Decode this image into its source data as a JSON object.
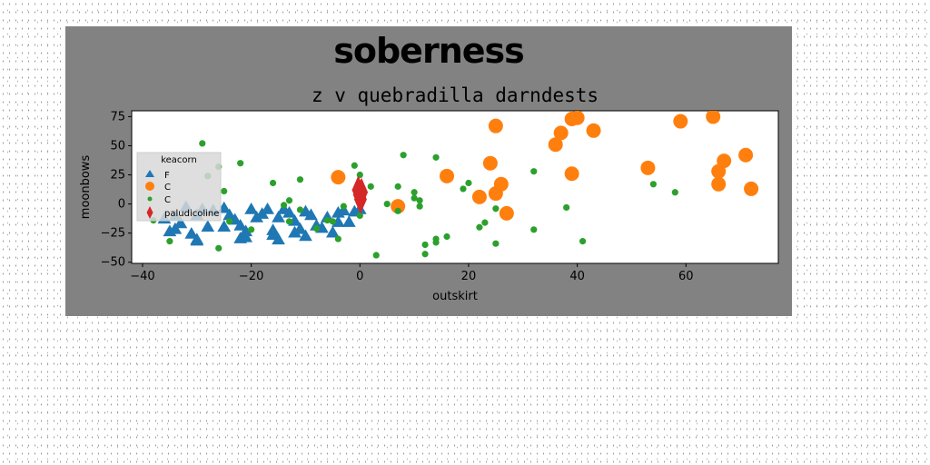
{
  "chart_data": {
    "type": "scatter",
    "suptitle": "soberness",
    "title": "z v quebradilla darndests",
    "xlabel": "outskirt",
    "ylabel": "moonbows",
    "xlim": [
      -42,
      77
    ],
    "ylim": [
      -51,
      80
    ],
    "xticks": [
      -40,
      -20,
      0,
      20,
      40,
      60
    ],
    "yticks": [
      -50,
      -25,
      0,
      25,
      50,
      75
    ],
    "xtick_labels": [
      "−40",
      "−20",
      "0",
      "20",
      "40",
      "60"
    ],
    "ytick_labels": [
      "−50",
      "−25",
      "0",
      "25",
      "50",
      "75"
    ],
    "grid": false,
    "legend": {
      "title": "keacorn",
      "placement": "upper-left",
      "entries": [
        "F",
        "C",
        "C",
        "paludicoline"
      ]
    },
    "series": [
      {
        "name": "F",
        "marker": "triangle",
        "color": "#1f77b4",
        "points": [
          [
            -36,
            -13
          ],
          [
            -35,
            -24
          ],
          [
            -34,
            -22
          ],
          [
            -33,
            -17
          ],
          [
            -32,
            -3
          ],
          [
            -31,
            -26
          ],
          [
            -30,
            -31
          ],
          [
            -30,
            -10
          ],
          [
            -29,
            -5
          ],
          [
            -28,
            -20
          ],
          [
            -27,
            -6
          ],
          [
            -25,
            -4
          ],
          [
            -25,
            -20
          ],
          [
            -24,
            -10
          ],
          [
            -23,
            -14
          ],
          [
            -22,
            -19
          ],
          [
            -22,
            -30
          ],
          [
            -21,
            -29
          ],
          [
            -21,
            -24
          ],
          [
            -20,
            -5
          ],
          [
            -19,
            -12
          ],
          [
            -18,
            -9
          ],
          [
            -17,
            -5
          ],
          [
            -16,
            -27
          ],
          [
            -16,
            -23
          ],
          [
            -15,
            -31
          ],
          [
            -15,
            -12
          ],
          [
            -14,
            -5
          ],
          [
            -13,
            -8
          ],
          [
            -12,
            -15
          ],
          [
            -12,
            -25
          ],
          [
            -11,
            -22
          ],
          [
            -10,
            -7
          ],
          [
            -10,
            -28
          ],
          [
            -9,
            -10
          ],
          [
            -8,
            -19
          ],
          [
            -7,
            -21
          ],
          [
            -6,
            -12
          ],
          [
            -5,
            -25
          ],
          [
            -4,
            -16
          ],
          [
            -4,
            -8
          ],
          [
            -3,
            -6
          ],
          [
            -2,
            -16
          ],
          [
            -1,
            -7
          ],
          [
            0,
            -5
          ],
          [
            -30,
            -32
          ],
          [
            -34,
            -11
          ]
        ]
      },
      {
        "name": "C",
        "marker": "circle",
        "color": "#ff7f0e",
        "points": [
          [
            -4,
            23
          ],
          [
            7,
            -2
          ],
          [
            16,
            24
          ],
          [
            22,
            6
          ],
          [
            24,
            35
          ],
          [
            25,
            67
          ],
          [
            25,
            9
          ],
          [
            26,
            17
          ],
          [
            27,
            -8
          ],
          [
            36,
            51
          ],
          [
            37,
            61
          ],
          [
            39,
            73
          ],
          [
            39,
            26
          ],
          [
            40,
            74
          ],
          [
            43,
            63
          ],
          [
            53,
            31
          ],
          [
            59,
            71
          ],
          [
            65,
            75
          ],
          [
            66,
            17
          ],
          [
            66,
            28
          ],
          [
            67,
            37
          ],
          [
            71,
            42
          ],
          [
            72,
            13
          ]
        ]
      },
      {
        "name": "C",
        "marker": "point",
        "color": "#2ca02c",
        "points": [
          [
            -38,
            -14
          ],
          [
            -35,
            -32
          ],
          [
            -29,
            52
          ],
          [
            -28,
            24
          ],
          [
            -26,
            -38
          ],
          [
            -26,
            32
          ],
          [
            -25,
            11
          ],
          [
            -24,
            -15
          ],
          [
            -22,
            35
          ],
          [
            -16,
            18
          ],
          [
            -14,
            -1
          ],
          [
            -13,
            3
          ],
          [
            -13,
            -15
          ],
          [
            -11,
            -5
          ],
          [
            -11,
            21
          ],
          [
            -6,
            -14
          ],
          [
            -5,
            -15
          ],
          [
            -4,
            -30
          ],
          [
            -3,
            -2
          ],
          [
            -1,
            33
          ],
          [
            0,
            25
          ],
          [
            0,
            -10
          ],
          [
            2,
            15
          ],
          [
            3,
            -44
          ],
          [
            7,
            -6
          ],
          [
            7,
            15
          ],
          [
            8,
            42
          ],
          [
            10,
            10
          ],
          [
            10,
            5
          ],
          [
            11,
            -2
          ],
          [
            11,
            3
          ],
          [
            12,
            -35
          ],
          [
            12,
            -43
          ],
          [
            14,
            -33
          ],
          [
            14,
            -30
          ],
          [
            14,
            40
          ],
          [
            16,
            -28
          ],
          [
            19,
            13
          ],
          [
            20,
            18
          ],
          [
            22,
            -20
          ],
          [
            23,
            -16
          ],
          [
            25,
            -34
          ],
          [
            25,
            -4
          ],
          [
            32,
            28
          ],
          [
            32,
            -22
          ],
          [
            38,
            -3
          ],
          [
            41,
            -32
          ],
          [
            54,
            17
          ],
          [
            58,
            10
          ],
          [
            -8,
            -21
          ],
          [
            -20,
            -22
          ],
          [
            5,
            0
          ]
        ]
      },
      {
        "name": "paludicoline",
        "marker": "thin_diamond",
        "color": "#d62728",
        "points": [
          [
            -0.3,
            12
          ],
          [
            -0.1,
            8
          ],
          [
            0.1,
            4
          ],
          [
            0.3,
            10
          ]
        ]
      }
    ]
  }
}
